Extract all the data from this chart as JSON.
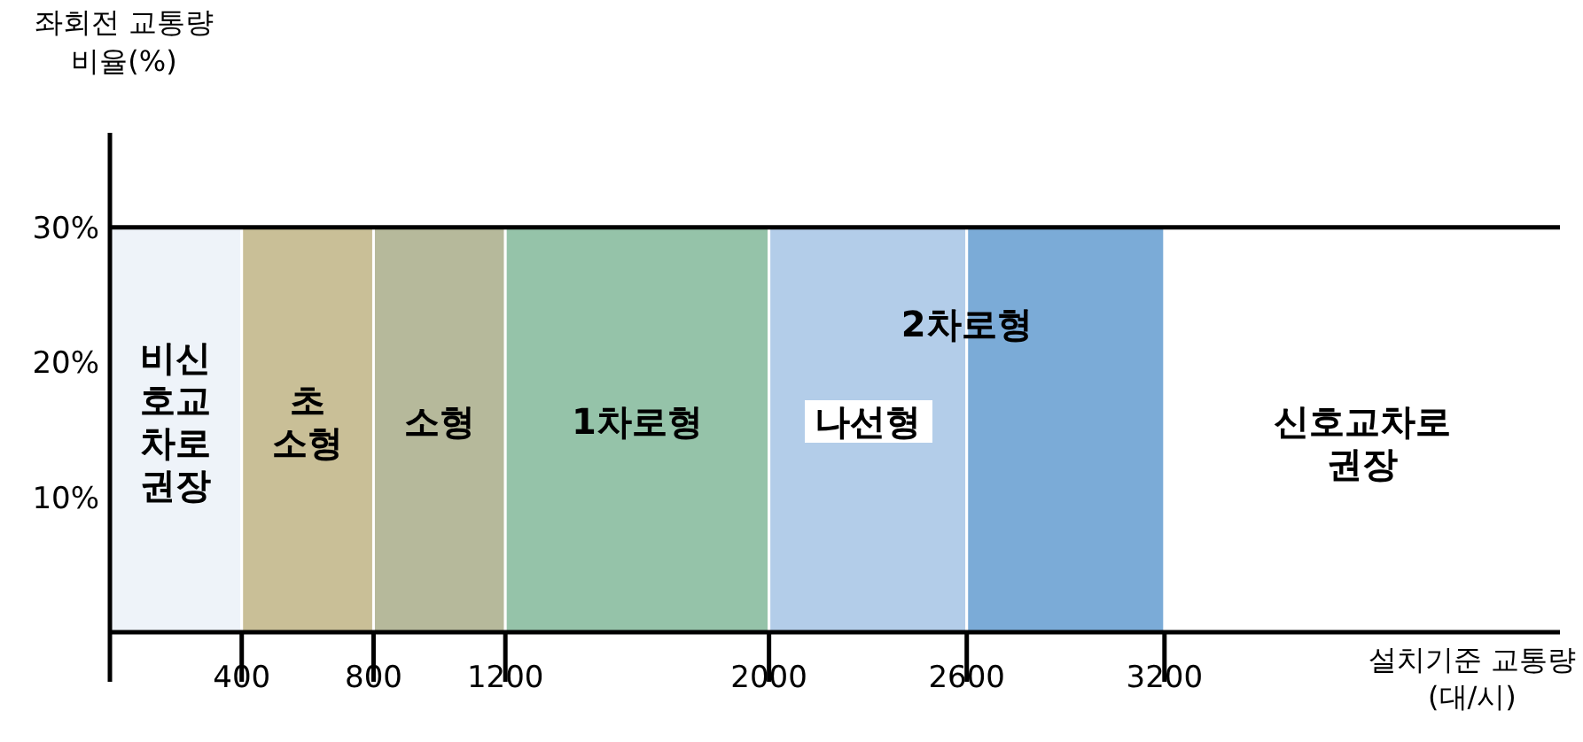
{
  "chart_data": {
    "type": "histogram",
    "bins": [
      0,
      400,
      800,
      1200,
      2000,
      2600,
      3200
    ],
    "values": [
      30,
      30,
      30,
      30,
      30,
      30
    ],
    "colors": [
      "#eef3f9",
      "#c9bf97",
      "#b6b99b",
      "#95c3a9",
      "#b3cde9",
      "#7babd7"
    ],
    "xlim": [
      0,
      4400
    ],
    "ylim": [
      0,
      37
    ],
    "xticks": [
      {
        "value": 0,
        "label": null
      },
      400,
      800,
      1200,
      2000,
      2600,
      3200
    ],
    "yticks": [
      {
        "value": 10,
        "label": "10%"
      },
      {
        "value": 20,
        "label": "20%"
      },
      {
        "value": 30,
        "label": "30%"
      }
    ],
    "ylabel": "좌회전 교통량\n비율(%)",
    "xlabel": "설치기준 교통량\n(대/시)",
    "ref_lines": [
      {
        "axis": "y",
        "value": 30,
        "label": null,
        "color": "#000000"
      }
    ],
    "annotations": [
      "비신\n호교\n차로\n권장",
      "초\n소형",
      "소형",
      "1차로형",
      "나선형",
      "2차로형",
      "신호교차로\n권장"
    ]
  }
}
